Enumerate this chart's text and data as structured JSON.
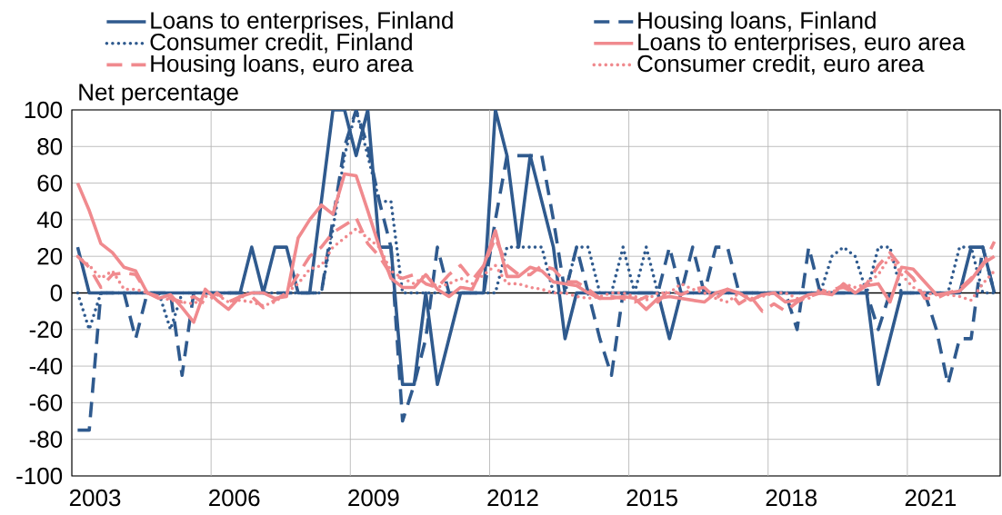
{
  "chart_data": {
    "type": "line",
    "ylabel": "Net percentage",
    "x": [
      2003.125,
      2003.375,
      2003.625,
      2003.875,
      2004.125,
      2004.375,
      2004.625,
      2004.875,
      2005.125,
      2005.375,
      2005.625,
      2005.875,
      2006.125,
      2006.375,
      2006.625,
      2006.875,
      2007.125,
      2007.375,
      2007.625,
      2007.875,
      2008.125,
      2008.375,
      2008.625,
      2008.875,
      2009.125,
      2009.375,
      2009.625,
      2009.875,
      2010.125,
      2010.375,
      2010.625,
      2010.875,
      2011.125,
      2011.375,
      2011.625,
      2011.875,
      2012.125,
      2012.375,
      2012.625,
      2012.875,
      2013.125,
      2013.375,
      2013.625,
      2013.875,
      2014.125,
      2014.375,
      2014.625,
      2014.875,
      2015.125,
      2015.375,
      2015.625,
      2015.875,
      2016.125,
      2016.375,
      2016.625,
      2016.875,
      2017.125,
      2017.375,
      2017.625,
      2017.875,
      2018.125,
      2018.375,
      2018.625,
      2018.875,
      2019.125,
      2019.375,
      2019.625,
      2019.875,
      2020.125,
      2020.375,
      2020.625,
      2020.875,
      2021.125,
      2021.375,
      2021.625,
      2021.875,
      2022.125,
      2022.375,
      2022.625,
      2022.875
    ],
    "xlim": [
      2003,
      2023
    ],
    "xticks": [
      {
        "value": 2003.5,
        "label": "2003"
      },
      {
        "value": 2006.5,
        "label": "2006"
      },
      {
        "value": 2009.5,
        "label": "2009"
      },
      {
        "value": 2012.5,
        "label": "2012"
      },
      {
        "value": 2015.5,
        "label": "2015"
      },
      {
        "value": 2018.5,
        "label": "2018"
      },
      {
        "value": 2021.5,
        "label": "2021"
      },
      {
        "value": 2006,
        "label": null
      },
      {
        "value": 2009,
        "label": null
      },
      {
        "value": 2012,
        "label": null
      },
      {
        "value": 2015,
        "label": null
      },
      {
        "value": 2018,
        "label": null
      },
      {
        "value": 2021,
        "label": null
      }
    ],
    "ylim": [
      -100,
      100
    ],
    "yticks": [
      -100,
      -80,
      -60,
      -40,
      -20,
      0,
      20,
      40,
      60,
      80,
      100
    ],
    "grid": true,
    "legend": "top",
    "ref_lines": [
      {
        "axis": "y",
        "value": 0,
        "color": "#000000"
      }
    ],
    "series": [
      {
        "name": "Loans to enterprises, Finland",
        "color": "#2f5a8e",
        "line_style": "solid",
        "values": [
          25,
          0,
          0,
          0,
          0,
          0,
          0,
          0,
          0,
          0,
          0,
          0,
          0,
          0,
          0,
          25,
          0,
          25,
          25,
          0,
          0,
          50,
          100,
          100,
          75,
          100,
          25,
          25,
          -50,
          -50,
          0,
          -50,
          -25,
          0,
          0,
          0,
          100,
          75,
          25,
          75,
          50,
          25,
          -25,
          0,
          0,
          0,
          0,
          0,
          0,
          0,
          0,
          -25,
          0,
          0,
          0,
          0,
          0,
          0,
          0,
          0,
          0,
          0,
          0,
          0,
          0,
          0,
          0,
          0,
          0,
          -50,
          -25,
          0,
          0,
          0,
          0,
          0,
          0,
          25,
          25,
          0
        ]
      },
      {
        "name": "Housing loans, Finland",
        "color": "#2f5a8e",
        "line_style": "dashed",
        "values": [
          -75,
          -75,
          0,
          0,
          0,
          -25,
          0,
          0,
          0,
          -45,
          0,
          0,
          0,
          0,
          0,
          0,
          0,
          0,
          0,
          0,
          0,
          0,
          40,
          80,
          100,
          80,
          50,
          25,
          -70,
          -50,
          -25,
          25,
          0,
          0,
          0,
          0,
          40,
          75,
          75,
          75,
          75,
          40,
          0,
          25,
          0,
          -25,
          -45,
          0,
          0,
          0,
          0,
          25,
          0,
          25,
          0,
          25,
          25,
          0,
          0,
          0,
          0,
          0,
          -20,
          25,
          0,
          0,
          0,
          0,
          0,
          -20,
          0,
          0,
          0,
          0,
          -20,
          -50,
          -25,
          -25,
          25,
          0
        ]
      },
      {
        "name": "Consumer credit, Finland",
        "color": "#2f5a8e",
        "line_style": "dotted",
        "values": [
          0,
          -20,
          0,
          0,
          0,
          0,
          0,
          0,
          -20,
          0,
          0,
          0,
          0,
          0,
          0,
          0,
          0,
          0,
          0,
          0,
          0,
          0,
          35,
          75,
          100,
          75,
          50,
          50,
          0,
          0,
          0,
          0,
          0,
          0,
          0,
          0,
          0,
          25,
          25,
          25,
          25,
          0,
          0,
          25,
          25,
          0,
          0,
          25,
          0,
          25,
          0,
          0,
          0,
          0,
          0,
          0,
          0,
          0,
          0,
          0,
          0,
          0,
          0,
          0,
          0,
          20,
          25,
          20,
          0,
          25,
          25,
          0,
          0,
          0,
          0,
          0,
          25,
          25,
          0,
          0
        ]
      },
      {
        "name": "Loans to enterprises, euro area",
        "color": "#f08a8e",
        "line_style": "solid",
        "values": [
          60,
          45,
          27,
          22,
          14,
          12,
          0,
          -3,
          -1,
          -8,
          -16,
          2,
          -4,
          -9,
          -2,
          0,
          0,
          -3,
          -2,
          30,
          40,
          48,
          43,
          65,
          64,
          45,
          25,
          8,
          3,
          3,
          10,
          2,
          -2,
          3,
          2,
          15,
          34,
          9,
          9,
          14,
          12,
          6,
          5,
          4,
          0,
          -3,
          -3,
          -2,
          -3,
          -9,
          -3,
          -2,
          -3,
          -4,
          -5,
          0,
          2,
          0,
          -4,
          -1,
          0,
          -5,
          -4,
          -1,
          0,
          -1,
          5,
          0,
          4,
          5,
          -5,
          14,
          13,
          6,
          -1,
          0,
          1,
          7,
          16,
          20
        ]
      },
      {
        "name": "Housing loans, euro area",
        "color": "#f08a8e",
        "line_style": "dashed",
        "values": [
          20,
          14,
          3,
          10,
          11,
          10,
          0,
          -2,
          -3,
          -5,
          -2,
          -6,
          0,
          -5,
          -2,
          -2,
          -8,
          -4,
          0,
          10,
          20,
          25,
          33,
          37,
          41,
          27,
          20,
          10,
          8,
          10,
          5,
          3,
          10,
          15,
          7,
          15,
          30,
          15,
          10,
          10,
          15,
          13,
          6,
          6,
          2,
          -3,
          -2,
          -3,
          -5,
          -2,
          -5,
          2,
          -1,
          2,
          3,
          -3,
          2,
          -6,
          -2,
          -10,
          -6,
          -10,
          -5,
          -2,
          0,
          2,
          3,
          0,
          5,
          15,
          22,
          14,
          8,
          -3,
          -3,
          0,
          2,
          8,
          15,
          28
        ]
      },
      {
        "name": "Consumer credit, euro area",
        "color": "#f08a8e",
        "line_style": "dotted",
        "values": [
          20,
          15,
          8,
          12,
          2,
          2,
          0,
          -2,
          -4,
          -5,
          -6,
          -2,
          -1,
          -5,
          -4,
          -5,
          -7,
          -5,
          0,
          5,
          13,
          15,
          25,
          30,
          35,
          30,
          25,
          12,
          8,
          5,
          10,
          3,
          5,
          8,
          5,
          10,
          15,
          5,
          5,
          3,
          2,
          0,
          0,
          -2,
          -3,
          -2,
          0,
          0,
          -2,
          -4,
          0,
          0,
          5,
          2,
          0,
          -3,
          -5,
          0,
          -3,
          -2,
          0,
          0,
          -3,
          -3,
          2,
          0,
          5,
          3,
          5,
          10,
          20,
          10,
          3,
          0,
          -1,
          -1,
          -2,
          -4,
          5,
          12
        ]
      }
    ]
  }
}
